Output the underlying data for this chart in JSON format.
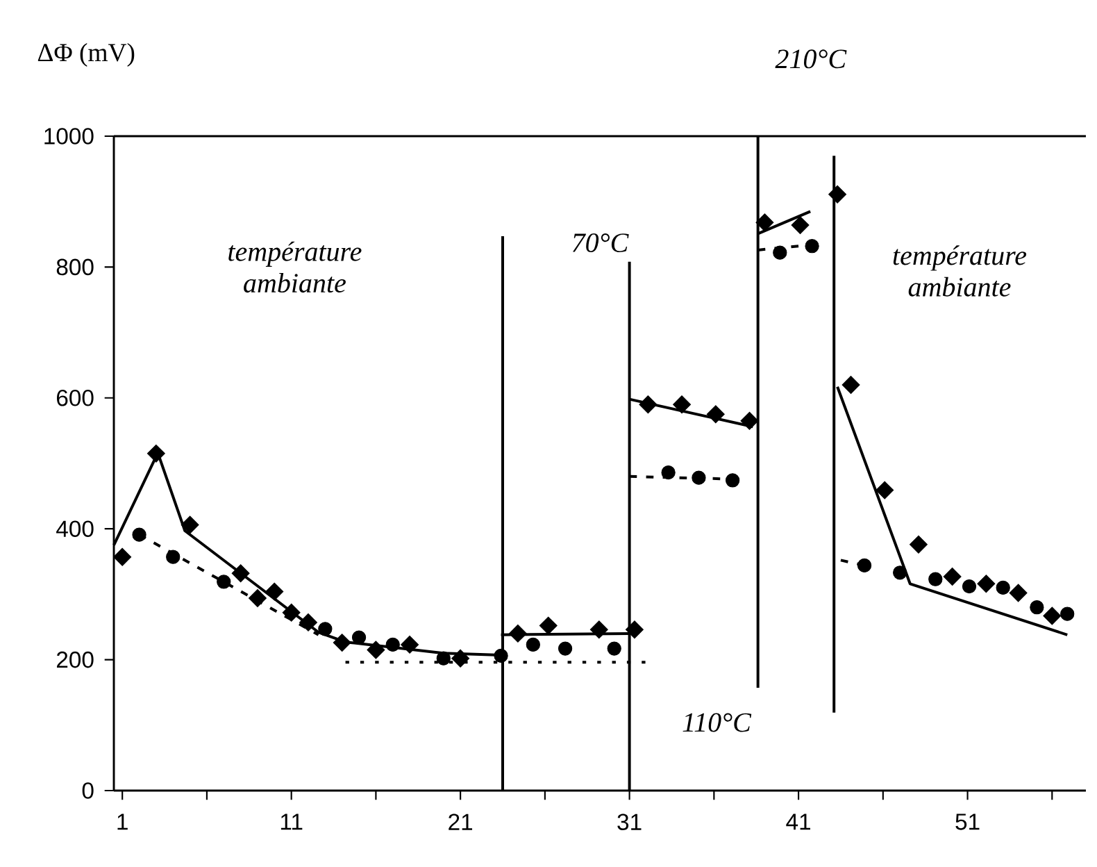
{
  "chart_data": {
    "type": "line",
    "ylabel": "ΔΦ (mV)",
    "xlim": [
      0.5,
      58
    ],
    "xticks": [
      1,
      {
        "value": 6,
        "label": null
      },
      11,
      {
        "value": 16,
        "label": null
      },
      21,
      {
        "value": 26,
        "label": null
      },
      31,
      {
        "value": 36,
        "label": null
      },
      41,
      {
        "value": 46,
        "label": null
      },
      51,
      {
        "value": 56,
        "label": null
      }
    ],
    "ylim": [
      0,
      1000
    ],
    "yticks": [
      0,
      200,
      400,
      600,
      800,
      1000
    ],
    "annotations": [
      "température ambiante",
      "70°C",
      "110°C",
      "210°C",
      "température ambiante"
    ],
    "series": [
      {
        "type": "scatter",
        "marker": "diamond",
        "color": "#000000",
        "x": [
          1,
          3,
          5,
          8,
          9,
          10,
          11,
          12,
          14,
          16,
          18,
          21,
          24.4,
          26.2,
          29.2,
          31.3,
          32.1,
          34.1,
          36.1,
          38.1,
          39,
          41.1,
          43.3,
          44.1,
          46.1,
          48.1,
          50.1,
          52.1,
          54,
          56
        ],
        "values": [
          357,
          515,
          406,
          332,
          294,
          304,
          272,
          257,
          226,
          215,
          223,
          202,
          240,
          252,
          246,
          246,
          590,
          590,
          575,
          565,
          868,
          864,
          911,
          620,
          459,
          376,
          327,
          316,
          302,
          267
        ]
      },
      {
        "type": "scatter",
        "marker": "circle",
        "color": "#000000",
        "x": [
          2,
          4,
          7,
          13,
          15,
          17,
          20,
          23.4,
          25.3,
          27.2,
          30.1,
          33.3,
          35.1,
          37.1,
          39.9,
          41.8,
          44.9,
          47,
          49.1,
          51.1,
          53.1,
          55.1,
          56.9
        ],
        "values": [
          391,
          357,
          319,
          247,
          234,
          223,
          202,
          206,
          223,
          217,
          217,
          486,
          478,
          474,
          822,
          832,
          344,
          333,
          323,
          312,
          310,
          280,
          270
        ]
      },
      {
        "line_style": "solid",
        "color": "#000000",
        "x": [
          0.5,
          3.1,
          4.7,
          12.6,
          14.2,
          20,
          23.4
        ],
        "values": [
          375,
          516,
          397,
          242,
          227,
          210,
          207
        ]
      },
      {
        "line_style": "solid",
        "color": "#000000",
        "x": [
          23.4,
          31
        ],
        "values": [
          238,
          240
        ]
      },
      {
        "line_style": "solid",
        "color": "#000000",
        "x": [
          31,
          38.3
        ],
        "values": [
          598,
          556
        ]
      },
      {
        "line_style": "solid",
        "color": "#000000",
        "x": [
          38.6,
          41.7
        ],
        "values": [
          851,
          885
        ]
      },
      {
        "line_style": "solid",
        "color": "#000000",
        "x": [
          43.3,
          47.6,
          56.9
        ],
        "values": [
          617,
          316,
          238
        ]
      },
      {
        "line_style": "dashed",
        "color": "#000000",
        "x": [
          2,
          12.6
        ],
        "values": [
          391,
          238
        ]
      },
      {
        "line_style": "dotted",
        "color": "#000000",
        "x": [
          14.2,
          32
        ],
        "values": [
          196,
          196
        ]
      },
      {
        "line_style": "dashed",
        "color": "#000000",
        "x": [
          31,
          37.1
        ],
        "values": [
          480,
          476
        ]
      },
      {
        "line_style": "dashed",
        "color": "#000000",
        "x": [
          38.6,
          41.8
        ],
        "values": [
          826,
          834
        ]
      },
      {
        "line_style": "dashed",
        "color": "#000000",
        "x": [
          43.5,
          44.9
        ],
        "values": [
          352,
          344
        ]
      },
      {
        "line_style": "solid",
        "color": "#000000",
        "x": [
          23.5,
          23.5
        ],
        "values": [
          0,
          847
        ]
      },
      {
        "line_style": "solid",
        "color": "#000000",
        "x": [
          31,
          31
        ],
        "values": [
          0,
          808
        ]
      },
      {
        "line_style": "solid",
        "color": "#000000",
        "x": [
          38.6,
          38.6
        ],
        "values": [
          157,
          1000
        ]
      },
      {
        "line_style": "solid",
        "color": "#000000",
        "x": [
          43.1,
          43.1
        ],
        "values": [
          119,
          970
        ]
      }
    ]
  }
}
